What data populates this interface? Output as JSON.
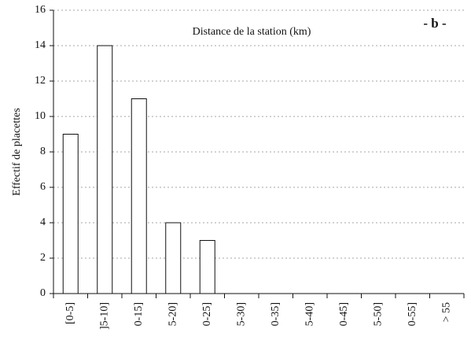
{
  "chart_data": {
    "type": "bar",
    "title": "Distance de la station (km)",
    "annotation": "- b -",
    "y_label": "Effectif de placettes",
    "categories": [
      "[0-5]",
      "]5-10]",
      "0-15]",
      "5-20]",
      "0-25]",
      "5-30]",
      "0-35]",
      "5-40]",
      "0-45]",
      "5-50]",
      "0-55]",
      "> 55"
    ],
    "values": [
      9,
      14,
      11,
      4,
      3,
      0,
      0,
      0,
      0,
      0,
      0,
      0
    ],
    "color": "#ffffff",
    "ylim": [
      0,
      16
    ],
    "yticks": [
      0,
      2,
      4,
      6,
      8,
      10,
      12,
      14,
      16
    ],
    "grid": true
  }
}
